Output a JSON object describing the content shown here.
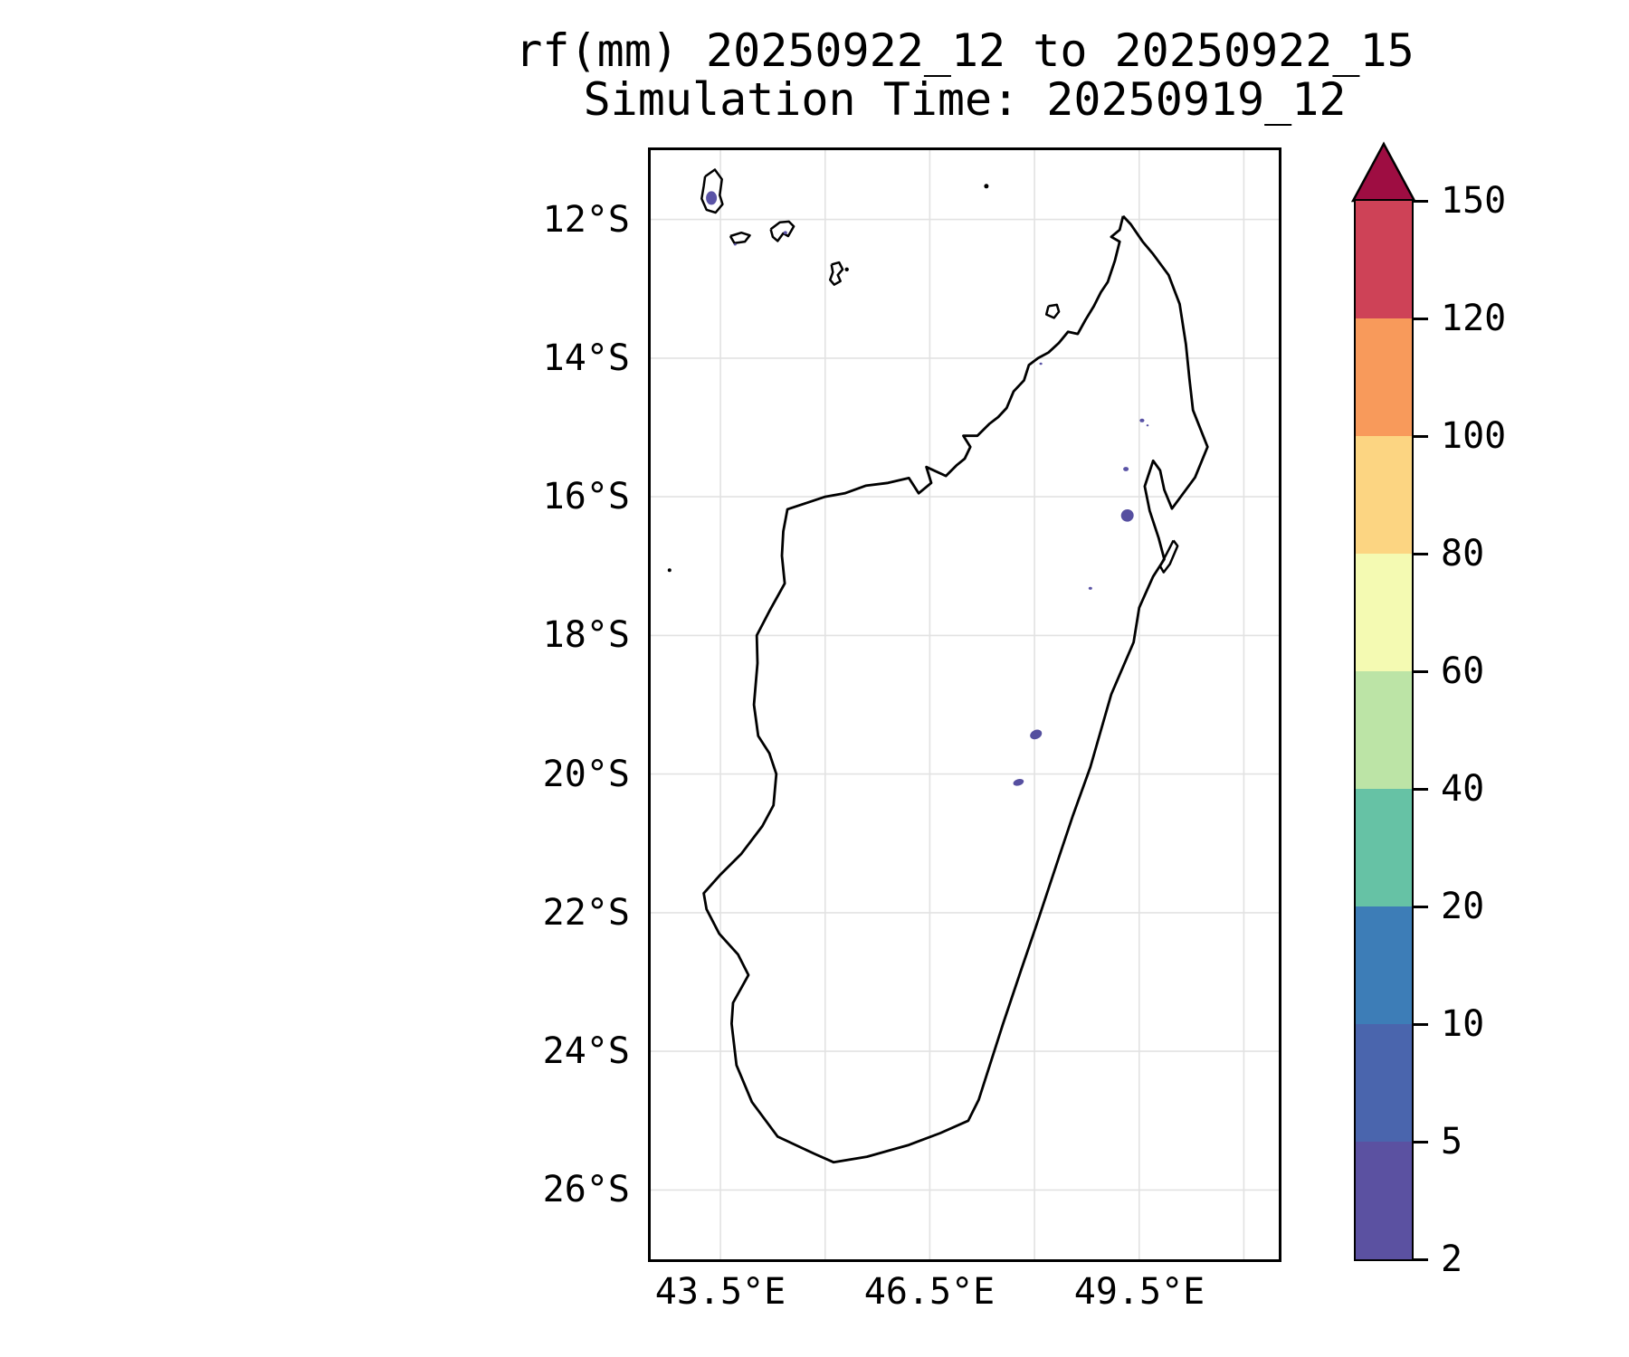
{
  "title": {
    "line1": "rf(mm) 20250922_12 to 20250922_15",
    "line2": "Simulation Time: 20250919_12"
  },
  "map": {
    "extent": {
      "lon_min": 42.5,
      "lon_max": 51.5,
      "lat_min": -27,
      "lat_max": -11
    },
    "x_ticks": [
      {
        "label": "43.5°E",
        "lon": 43.5
      },
      {
        "label": "46.5°E",
        "lon": 46.5
      },
      {
        "label": "49.5°E",
        "lon": 49.5
      }
    ],
    "y_ticks": [
      {
        "label": "12°S",
        "lat": -12
      },
      {
        "label": "14°S",
        "lat": -14
      },
      {
        "label": "16°S",
        "lat": -16
      },
      {
        "label": "18°S",
        "lat": -18
      },
      {
        "label": "20°S",
        "lat": -20
      },
      {
        "label": "22°S",
        "lat": -22
      },
      {
        "label": "24°S",
        "lat": -24
      },
      {
        "label": "26°S",
        "lat": -26
      }
    ],
    "grid_lons": [
      43.5,
      45,
      46.5,
      48,
      49.5,
      51
    ],
    "grid_lats": [
      -12,
      -14,
      -16,
      -18,
      -20,
      -22,
      -24,
      -26
    ],
    "grid_color": "#e2e2e2",
    "coast_color": "#000000"
  },
  "colorbar": {
    "levels": [
      2,
      5,
      10,
      20,
      40,
      60,
      80,
      100,
      120,
      150
    ],
    "tick_labels": [
      "2",
      "5",
      "10",
      "20",
      "40",
      "60",
      "80",
      "100",
      "120",
      "150"
    ],
    "bin_colors": [
      "#5b51a1",
      "#4a65ad",
      "#3d7db7",
      "#66c2a5",
      "#bce4a6",
      "#f4fab2",
      "#fcd582",
      "#f89a5b",
      "#ce4257"
    ],
    "over_color": "#9e0d42"
  },
  "basemap": {
    "coastlines": [
      {
        "name": "madagascar",
        "points": [
          [
            49.27,
            -11.95
          ],
          [
            49.38,
            -12.07
          ],
          [
            49.55,
            -12.32
          ],
          [
            49.7,
            -12.5
          ],
          [
            49.92,
            -12.8
          ],
          [
            50.08,
            -13.22
          ],
          [
            50.17,
            -13.8
          ],
          [
            50.22,
            -14.3
          ],
          [
            50.27,
            -14.75
          ],
          [
            50.48,
            -15.28
          ],
          [
            50.3,
            -15.72
          ],
          [
            49.97,
            -16.17
          ],
          [
            49.86,
            -15.9
          ],
          [
            49.8,
            -15.62
          ],
          [
            49.7,
            -15.48
          ],
          [
            49.58,
            -15.85
          ],
          [
            49.65,
            -16.2
          ],
          [
            49.78,
            -16.6
          ],
          [
            49.86,
            -16.9
          ],
          [
            49.7,
            -17.15
          ],
          [
            49.5,
            -17.6
          ],
          [
            49.42,
            -18.1
          ],
          [
            49.1,
            -18.85
          ],
          [
            48.8,
            -19.9
          ],
          [
            48.55,
            -20.6
          ],
          [
            48.35,
            -21.2
          ],
          [
            48.02,
            -22.2
          ],
          [
            47.8,
            -22.85
          ],
          [
            47.55,
            -23.6
          ],
          [
            47.2,
            -24.7
          ],
          [
            47.05,
            -25.0
          ],
          [
            46.65,
            -25.18
          ],
          [
            46.2,
            -25.35
          ],
          [
            45.6,
            -25.52
          ],
          [
            45.12,
            -25.6
          ],
          [
            44.85,
            -25.48
          ],
          [
            44.32,
            -25.23
          ],
          [
            43.95,
            -24.73
          ],
          [
            43.73,
            -24.2
          ],
          [
            43.66,
            -23.6
          ],
          [
            43.68,
            -23.3
          ],
          [
            43.9,
            -22.9
          ],
          [
            43.75,
            -22.6
          ],
          [
            43.48,
            -22.3
          ],
          [
            43.3,
            -21.95
          ],
          [
            43.26,
            -21.72
          ],
          [
            43.5,
            -21.45
          ],
          [
            43.8,
            -21.15
          ],
          [
            44.1,
            -20.75
          ],
          [
            44.26,
            -20.45
          ],
          [
            44.3,
            -20.0
          ],
          [
            44.2,
            -19.7
          ],
          [
            44.04,
            -19.45
          ],
          [
            43.98,
            -19.0
          ],
          [
            44.03,
            -18.4
          ],
          [
            44.02,
            -18.0
          ],
          [
            44.2,
            -17.65
          ],
          [
            44.42,
            -17.25
          ],
          [
            44.38,
            -16.85
          ],
          [
            44.4,
            -16.5
          ],
          [
            44.46,
            -16.18
          ],
          [
            44.7,
            -16.1
          ],
          [
            45.0,
            -16.0
          ],
          [
            45.28,
            -15.95
          ],
          [
            45.58,
            -15.84
          ],
          [
            45.9,
            -15.8
          ],
          [
            46.2,
            -15.73
          ],
          [
            46.34,
            -15.95
          ],
          [
            46.52,
            -15.8
          ],
          [
            46.45,
            -15.57
          ],
          [
            46.73,
            -15.7
          ],
          [
            46.88,
            -15.55
          ],
          [
            47.0,
            -15.45
          ],
          [
            47.08,
            -15.28
          ],
          [
            46.98,
            -15.12
          ],
          [
            47.18,
            -15.12
          ],
          [
            47.35,
            -14.95
          ],
          [
            47.48,
            -14.85
          ],
          [
            47.6,
            -14.72
          ],
          [
            47.7,
            -14.48
          ],
          [
            47.85,
            -14.32
          ],
          [
            47.92,
            -14.1
          ],
          [
            48.05,
            -14.0
          ],
          [
            48.2,
            -13.92
          ],
          [
            48.35,
            -13.78
          ],
          [
            48.48,
            -13.62
          ],
          [
            48.62,
            -13.65
          ],
          [
            48.73,
            -13.45
          ],
          [
            48.85,
            -13.25
          ],
          [
            48.95,
            -13.05
          ],
          [
            49.05,
            -12.9
          ],
          [
            49.15,
            -12.6
          ],
          [
            49.22,
            -12.32
          ],
          [
            49.1,
            -12.25
          ],
          [
            49.22,
            -12.15
          ],
          [
            49.27,
            -11.95
          ]
        ]
      },
      {
        "name": "grande-comore",
        "points": [
          [
            43.28,
            -11.38
          ],
          [
            43.42,
            -11.28
          ],
          [
            43.52,
            -11.42
          ],
          [
            43.49,
            -11.65
          ],
          [
            43.53,
            -11.78
          ],
          [
            43.43,
            -11.9
          ],
          [
            43.3,
            -11.86
          ],
          [
            43.23,
            -11.7
          ],
          [
            43.26,
            -11.52
          ],
          [
            43.28,
            -11.38
          ]
        ]
      },
      {
        "name": "moheli",
        "points": [
          [
            43.64,
            -12.24
          ],
          [
            43.8,
            -12.19
          ],
          [
            43.92,
            -12.23
          ],
          [
            43.85,
            -12.32
          ],
          [
            43.7,
            -12.34
          ],
          [
            43.64,
            -12.24
          ]
        ]
      },
      {
        "name": "anjouan",
        "points": [
          [
            44.22,
            -12.14
          ],
          [
            44.35,
            -12.04
          ],
          [
            44.48,
            -12.03
          ],
          [
            44.55,
            -12.1
          ],
          [
            44.47,
            -12.24
          ],
          [
            44.4,
            -12.2
          ],
          [
            44.32,
            -12.31
          ],
          [
            44.25,
            -12.25
          ],
          [
            44.22,
            -12.14
          ]
        ]
      },
      {
        "name": "mayotte",
        "points": [
          [
            45.09,
            -12.65
          ],
          [
            45.2,
            -12.62
          ],
          [
            45.25,
            -12.72
          ],
          [
            45.18,
            -12.8
          ],
          [
            45.22,
            -12.89
          ],
          [
            45.13,
            -12.94
          ],
          [
            45.07,
            -12.87
          ],
          [
            45.11,
            -12.76
          ],
          [
            45.09,
            -12.65
          ]
        ]
      },
      {
        "name": "nosy-be",
        "points": [
          [
            48.2,
            -13.25
          ],
          [
            48.32,
            -13.23
          ],
          [
            48.35,
            -13.33
          ],
          [
            48.28,
            -13.42
          ],
          [
            48.17,
            -13.37
          ],
          [
            48.2,
            -13.25
          ]
        ]
      },
      {
        "name": "sainte-marie",
        "points": [
          [
            49.99,
            -16.63
          ],
          [
            50.05,
            -16.71
          ],
          [
            49.94,
            -16.97
          ],
          [
            49.85,
            -17.09
          ],
          [
            49.8,
            -17.0
          ],
          [
            49.92,
            -16.77
          ],
          [
            49.99,
            -16.63
          ]
        ]
      }
    ],
    "islets": [
      {
        "name": "glorioso-islet",
        "lon": 47.31,
        "lat": -11.52,
        "r": 2.5
      },
      {
        "name": "mayotte-islet",
        "lon": 45.31,
        "lat": -12.72,
        "r": 2.2
      },
      {
        "name": "juan-de-nova-islet",
        "lon": 42.77,
        "lat": -17.06,
        "r": 2.0
      }
    ]
  },
  "chart_data": {
    "type": "heatmap",
    "title": "rf(mm) 20250922_12 to 20250922_15",
    "subtitle": "Simulation Time: 20250919_12",
    "variable": "rainfall accumulation (mm)",
    "region": "Madagascar and Comoros",
    "xlabel_ticks": [
      "43.5°E",
      "46.5°E",
      "49.5°E"
    ],
    "ylabel_ticks": [
      "12°S",
      "14°S",
      "16°S",
      "18°S",
      "20°S",
      "22°S",
      "24°S",
      "26°S"
    ],
    "lon_range": [
      42.5,
      51.5
    ],
    "lat_range": [
      -27,
      -11
    ],
    "grid": true,
    "legend_position": "right-colorbar",
    "colorbar_levels": [
      2,
      5,
      10,
      20,
      40,
      60,
      80,
      100,
      120,
      150
    ],
    "colorbar_colors": [
      "#5b51a1",
      "#4a65ad",
      "#3d7db7",
      "#66c2a5",
      "#bce4a6",
      "#f4fab2",
      "#fcd582",
      "#f89a5b",
      "#ce4257"
    ],
    "colorbar_over_color": "#9e0d42",
    "rain_spots": [
      {
        "name": "grande-comore-rain",
        "lon": 43.37,
        "lat": -11.69,
        "value_bin": "2-5 mm",
        "rx": 6,
        "ry": 7.5,
        "rot": 0,
        "color": "#5a53a6"
      },
      {
        "name": "anjouan-rain",
        "lon": 44.43,
        "lat": -12.19,
        "value_bin": "2-5 mm",
        "rx": 2,
        "ry": 1.8,
        "rot": 0,
        "color": "#5a53a6"
      },
      {
        "name": "moheli-rain",
        "lon": 43.71,
        "lat": -12.36,
        "value_bin": "2-5 mm",
        "rx": 1.5,
        "ry": 1.2,
        "rot": 0,
        "color": "#5a53a6"
      },
      {
        "name": "nw-interior-rain",
        "lon": 48.09,
        "lat": -14.08,
        "value_bin": "2-5 mm",
        "rx": 1.6,
        "ry": 1.3,
        "rot": 0,
        "color": "#5a53a6"
      },
      {
        "name": "ne-coast-rain-1",
        "lon": 49.54,
        "lat": -14.9,
        "value_bin": "2-5 mm",
        "rx": 2.6,
        "ry": 2.0,
        "rot": 0,
        "color": "#5a53a6"
      },
      {
        "name": "ne-coast-rain-2",
        "lon": 49.62,
        "lat": -14.97,
        "value_bin": "2-5 mm",
        "rx": 1.3,
        "ry": 1.1,
        "rot": 0,
        "color": "#5a53a6"
      },
      {
        "name": "east-coast-rain-1",
        "lon": 49.31,
        "lat": -15.6,
        "value_bin": "2-5 mm",
        "rx": 3.0,
        "ry": 2.4,
        "rot": 0,
        "color": "#5a53a6"
      },
      {
        "name": "east-coast-rain-2",
        "lon": 49.33,
        "lat": -16.27,
        "value_bin": "2-5 mm",
        "rx": 7.0,
        "ry": 6.8,
        "rot": -20,
        "color": "#564fa0"
      },
      {
        "name": "east-coast-rain-3",
        "lon": 48.8,
        "lat": -17.32,
        "value_bin": "2-5 mm",
        "rx": 2.0,
        "ry": 1.6,
        "rot": 0,
        "color": "#5a53a6"
      },
      {
        "name": "central-rain-1",
        "lon": 48.02,
        "lat": -19.43,
        "value_bin": "2-5 mm",
        "rx": 6.8,
        "ry": 5.0,
        "rot": -25,
        "color": "#544f9e"
      },
      {
        "name": "central-rain-2",
        "lon": 47.77,
        "lat": -20.12,
        "value_bin": "2-5 mm",
        "rx": 6.0,
        "ry": 3.6,
        "rot": -15,
        "color": "#564fa0"
      }
    ]
  }
}
